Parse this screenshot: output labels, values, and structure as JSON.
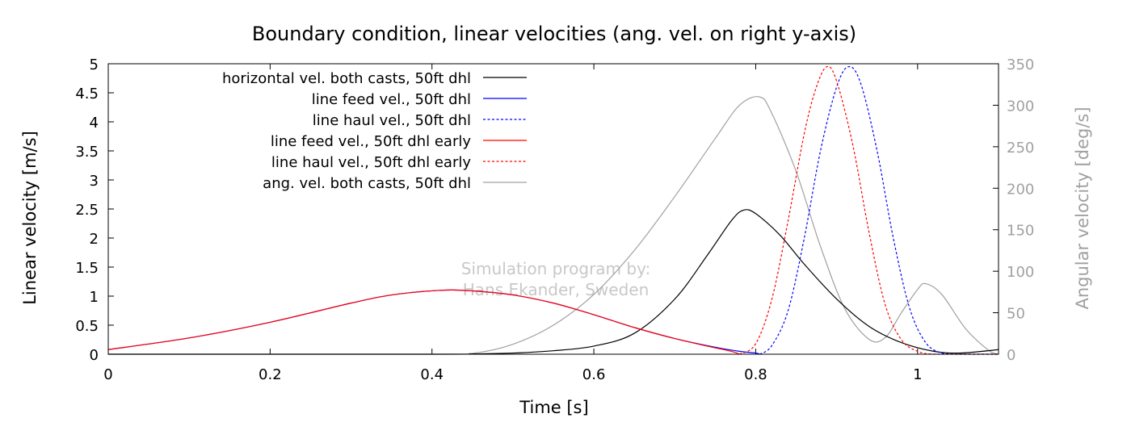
{
  "chart_data": {
    "type": "line",
    "title": "Boundary condition, linear velocities (ang. vel. on right y-axis)",
    "xlabel": "Time [s]",
    "ylabel": "Linear velocity [m/s]",
    "y2label": "Angular velocity [deg/s]",
    "xlim": [
      0,
      1.1
    ],
    "ylim": [
      0,
      5
    ],
    "y2lim": [
      0,
      350
    ],
    "xticks": [
      "0",
      "0.2",
      "0.4",
      "0.6",
      "0.8",
      "1"
    ],
    "xtick_values": [
      0,
      0.2,
      0.4,
      0.6,
      0.8,
      1.0
    ],
    "yticks": [
      "0",
      "0.5",
      "1",
      "1.5",
      "2",
      "2.5",
      "3",
      "3.5",
      "4",
      "4.5",
      "5"
    ],
    "ytick_values": [
      0,
      0.5,
      1,
      1.5,
      2,
      2.5,
      3,
      3.5,
      4,
      4.5,
      5
    ],
    "y2ticks": [
      "0",
      "50",
      "100",
      "150",
      "200",
      "250",
      "300",
      "350"
    ],
    "y2tick_values": [
      0,
      50,
      100,
      150,
      200,
      250,
      300,
      350
    ],
    "grid": false,
    "legend_position": "top-left",
    "watermark": [
      "Simulation program by:",
      "Hans Ekander, Sweden"
    ],
    "series": [
      {
        "name": "horizontal vel. both casts, 50ft dhl",
        "axis": "left",
        "color": "#000000",
        "dash": "solid",
        "x": [
          0,
          0.4,
          0.45,
          0.5,
          0.55,
          0.6,
          0.65,
          0.7,
          0.74,
          0.77,
          0.785,
          0.8,
          0.83,
          0.86,
          0.9,
          0.94,
          0.98,
          1.02,
          1.05,
          1.08,
          1.1
        ],
        "y": [
          0,
          0,
          0.005,
          0.02,
          0.06,
          0.14,
          0.36,
          0.95,
          1.7,
          2.3,
          2.48,
          2.42,
          2.05,
          1.55,
          0.95,
          0.48,
          0.2,
          0.05,
          0.02,
          0.05,
          0.08
        ]
      },
      {
        "name": "line feed vel., 50ft dhl",
        "axis": "left",
        "color": "#0000ff",
        "dash": "solid",
        "x": [
          0,
          0.1,
          0.2,
          0.3,
          0.35,
          0.41,
          0.45,
          0.5,
          0.55,
          0.6,
          0.65,
          0.7,
          0.75,
          0.78,
          0.8,
          0.805
        ],
        "y": [
          0.08,
          0.28,
          0.55,
          0.88,
          1.02,
          1.1,
          1.09,
          1.02,
          0.88,
          0.68,
          0.46,
          0.27,
          0.12,
          0.05,
          0.02,
          0.0
        ]
      },
      {
        "name": "line haul vel., 50ft dhl",
        "axis": "left",
        "color": "#0000ff",
        "dash": "dashed",
        "x": [
          0.805,
          0.82,
          0.84,
          0.86,
          0.88,
          0.9,
          0.915,
          0.93,
          0.95,
          0.97,
          0.99,
          1.01,
          1.03,
          1.05,
          1.1
        ],
        "y": [
          0.0,
          0.15,
          0.75,
          2.0,
          3.5,
          4.6,
          4.95,
          4.65,
          3.5,
          2.0,
          0.8,
          0.2,
          0.02,
          0.0,
          0.0
        ]
      },
      {
        "name": "line feed vel., 50ft dhl early",
        "axis": "left",
        "color": "#ff0000",
        "dash": "solid",
        "x": [
          0,
          0.1,
          0.2,
          0.3,
          0.35,
          0.41,
          0.45,
          0.5,
          0.55,
          0.6,
          0.65,
          0.7,
          0.74,
          0.77,
          0.78
        ],
        "y": [
          0.08,
          0.28,
          0.55,
          0.88,
          1.02,
          1.1,
          1.09,
          1.02,
          0.88,
          0.68,
          0.46,
          0.27,
          0.14,
          0.05,
          0.0
        ]
      },
      {
        "name": "line haul vel., 50ft dhl early",
        "axis": "left",
        "color": "#ff0000",
        "dash": "dashed",
        "x": [
          0.78,
          0.8,
          0.82,
          0.84,
          0.86,
          0.875,
          0.888,
          0.9,
          0.92,
          0.94,
          0.96,
          0.98,
          1.0,
          1.02,
          1.05,
          1.1
        ],
        "y": [
          0.0,
          0.18,
          0.95,
          2.3,
          3.8,
          4.6,
          4.95,
          4.7,
          3.6,
          2.1,
          0.85,
          0.25,
          0.05,
          0.0,
          0.0,
          0.0
        ]
      },
      {
        "name": "ang. vel. both casts, 50ft dhl",
        "axis": "right",
        "color": "#a0a0a0",
        "dash": "solid",
        "x": [
          0,
          0.4,
          0.45,
          0.5,
          0.55,
          0.6,
          0.65,
          0.7,
          0.75,
          0.78,
          0.805,
          0.82,
          0.85,
          0.88,
          0.91,
          0.94,
          0.96,
          0.98,
          1.0,
          1.01,
          1.03,
          1.06,
          1.09,
          1.1
        ],
        "y": [
          0,
          0,
          1,
          12,
          35,
          72,
          125,
          190,
          260,
          300,
          310,
          290,
          220,
          130,
          55,
          18,
          20,
          50,
          78,
          85,
          72,
          30,
          3,
          0
        ]
      }
    ]
  }
}
